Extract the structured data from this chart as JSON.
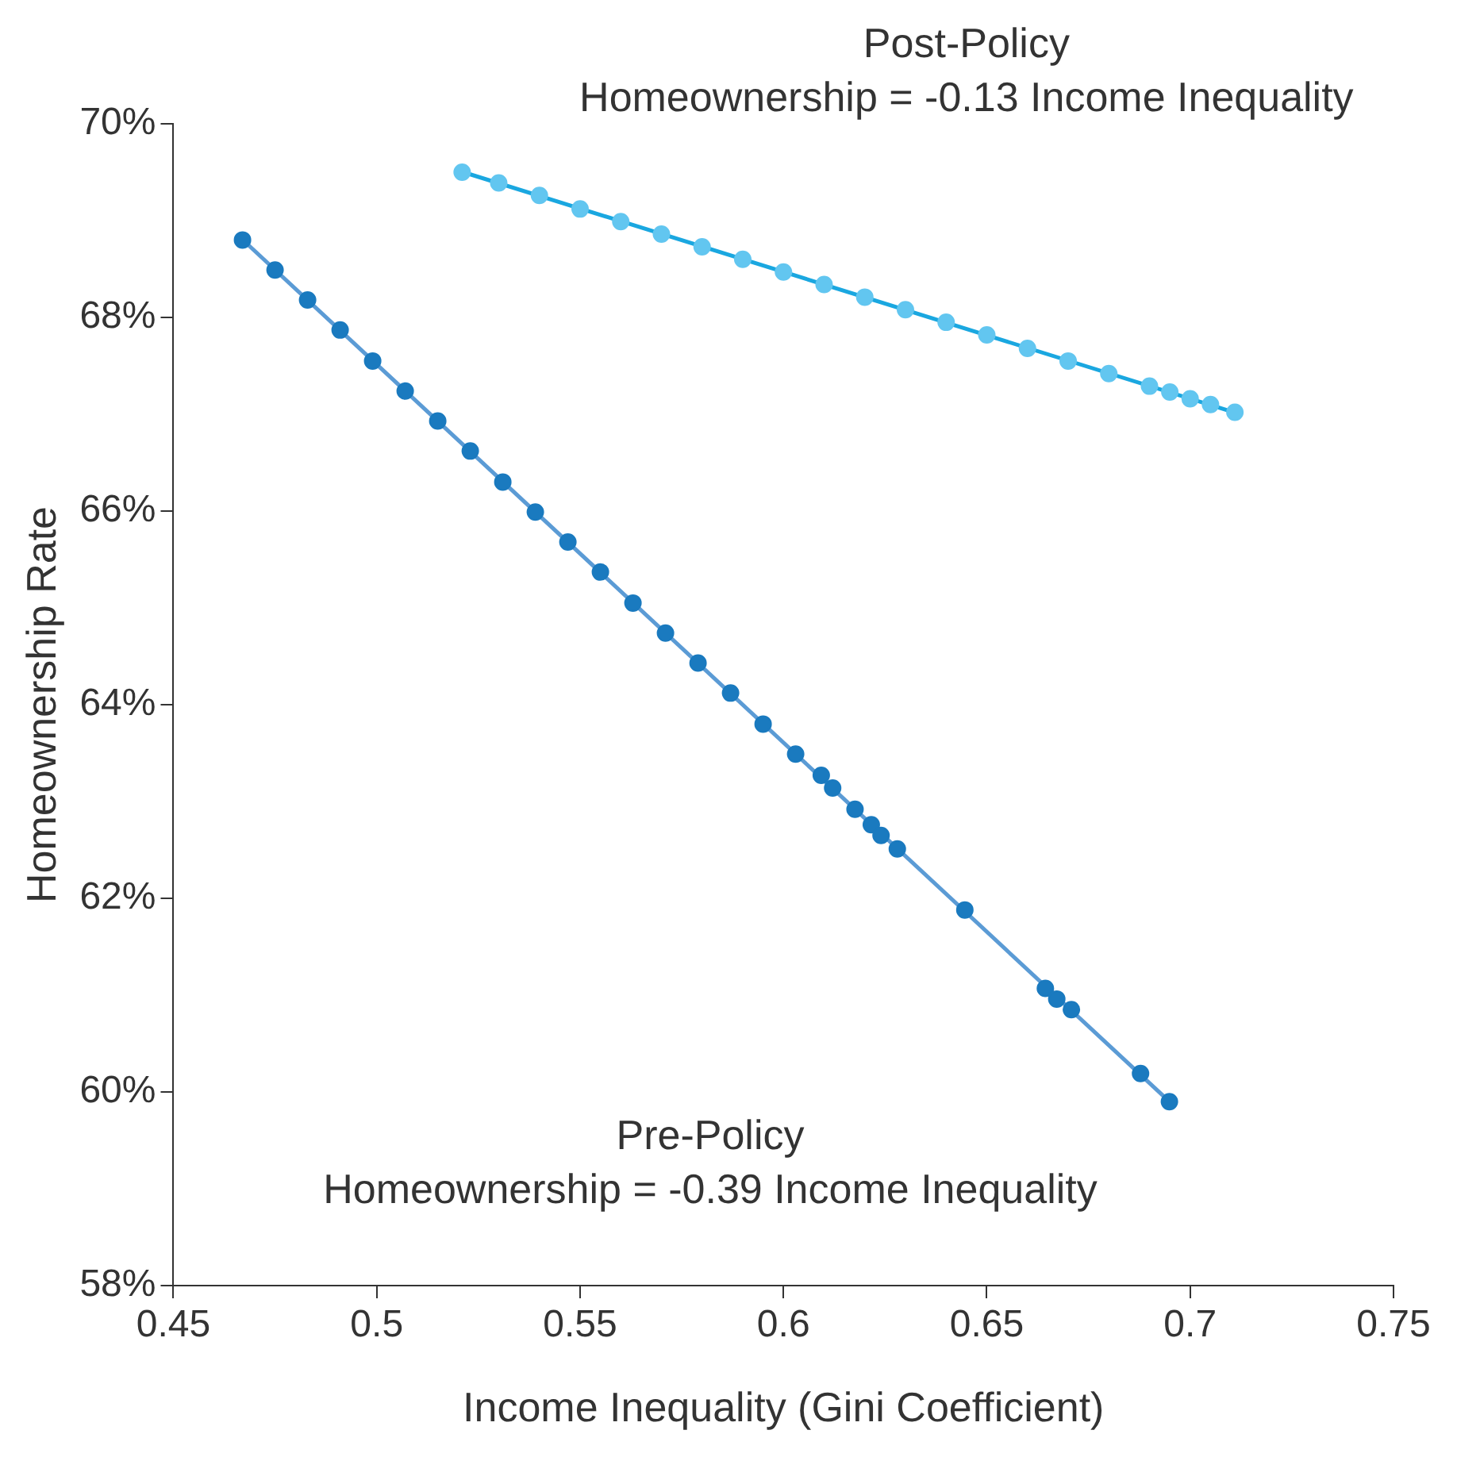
{
  "chart_data": {
    "type": "scatter",
    "xlabel": "Income Inequality (Gini Coefficient)",
    "ylabel": "Homeownership Rate",
    "xlim": [
      0.45,
      0.75
    ],
    "xticks": [
      0.45,
      0.5,
      0.55,
      0.6,
      0.65,
      0.7,
      0.75
    ],
    "ylim": [
      58,
      70
    ],
    "yticks": [
      {
        "value": 58,
        "label": "58%"
      },
      {
        "value": 60,
        "label": "60%"
      },
      {
        "value": 62,
        "label": "62%"
      },
      {
        "value": 64,
        "label": "64%"
      },
      {
        "value": 66,
        "label": "66%"
      },
      {
        "value": 68,
        "label": "68%"
      },
      {
        "value": 70,
        "label": "70%"
      }
    ],
    "grid": false,
    "legend": false,
    "marker": "circle",
    "annotations": [
      "Post-Policy\nHomeownership = -0.13 Income Inequality",
      "Pre-Policy\nHomeownership = -0.39 Income Inequality"
    ],
    "series": [
      {
        "type": "line",
        "marker": "none",
        "color": "#5b9bd5",
        "x": [
          0.4666,
          0.6949
        ],
        "values": [
          68.82,
          59.9
        ]
      },
      {
        "color": "#1a7abf",
        "x": [
          0.467,
          0.475,
          0.483,
          0.491,
          0.499,
          0.507,
          0.515,
          0.523,
          0.531,
          0.539,
          0.547,
          0.555,
          0.563,
          0.571,
          0.579,
          0.587,
          0.595,
          0.603,
          0.6093,
          0.6121,
          0.6176,
          0.6216,
          0.624,
          0.628,
          0.6446,
          0.6644,
          0.6672,
          0.6708,
          0.6878,
          0.6949
        ],
        "values": [
          68.8,
          68.49,
          68.18,
          67.87,
          67.55,
          67.24,
          66.93,
          66.62,
          66.3,
          65.99,
          65.68,
          65.37,
          65.05,
          64.74,
          64.43,
          64.12,
          63.8,
          63.49,
          63.27,
          63.14,
          62.92,
          62.76,
          62.65,
          62.51,
          61.88,
          61.07,
          60.96,
          60.85,
          60.19,
          59.9
        ]
      },
      {
        "type": "line",
        "marker": "none",
        "color": "#1aa7e0",
        "x": [
          0.5213,
          0.7108
        ],
        "values": [
          69.5,
          67.02
        ]
      },
      {
        "color": "#62c6f0",
        "x": [
          0.521,
          0.53,
          0.54,
          0.55,
          0.56,
          0.57,
          0.58,
          0.59,
          0.6,
          0.61,
          0.62,
          0.63,
          0.64,
          0.65,
          0.66,
          0.67,
          0.68,
          0.69,
          0.695,
          0.7,
          0.705,
          0.711
        ],
        "values": [
          69.5,
          69.39,
          69.26,
          69.12,
          68.99,
          68.86,
          68.73,
          68.6,
          68.47,
          68.34,
          68.21,
          68.08,
          67.95,
          67.82,
          67.68,
          67.55,
          67.42,
          67.29,
          67.23,
          67.16,
          67.1,
          67.02
        ]
      }
    ]
  }
}
